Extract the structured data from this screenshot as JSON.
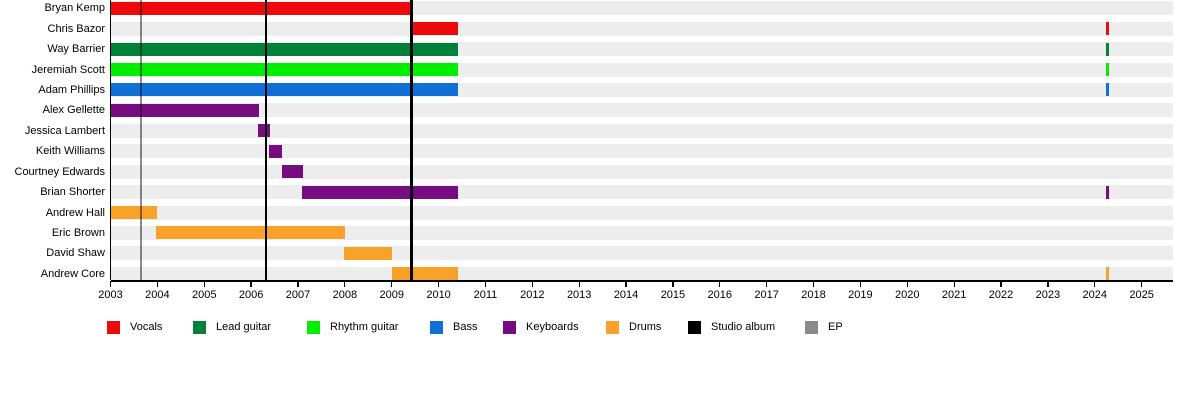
{
  "chart_data": {
    "type": "timeline",
    "description": "Band members timeline gantt chart",
    "x_axis": {
      "min_year": 2003,
      "max_year": 2025.66,
      "tick_labels": [
        "2003",
        "2004",
        "2005",
        "2006",
        "2007",
        "2008",
        "2009",
        "2010",
        "2011",
        "2012",
        "2013",
        "2014",
        "2015",
        "2016",
        "2017",
        "2018",
        "2019",
        "2020",
        "2021",
        "2022",
        "2023",
        "2024",
        "2025"
      ]
    },
    "colors": {
      "vocals": "#ee0a0a",
      "lead_guitar": "#01813a",
      "rhythm_guitar": "#00ee00",
      "bass": "#1170d5",
      "keyboards": "#770b80",
      "drums": "#f9a22a",
      "studio_album": "#000000",
      "ep": "#8a8a8a",
      "stripe": "#ededed"
    },
    "members": [
      {
        "name": "Bryan Kemp",
        "role": "Vocals",
        "color_key": "vocals",
        "bars": [
          [
            2003.02,
            2009.4
          ]
        ]
      },
      {
        "name": "Chris Bazor",
        "role": "Vocals",
        "color_key": "vocals",
        "bars": [
          [
            2009.4,
            2010.42
          ],
          [
            2024.25,
            2024.31
          ]
        ]
      },
      {
        "name": "Way Barrier",
        "role": "Lead guitar",
        "color_key": "lead_guitar",
        "bars": [
          [
            2003.02,
            2010.42
          ],
          [
            2024.25,
            2024.31
          ]
        ]
      },
      {
        "name": "Jeremiah Scott",
        "role": "Rhythm guitar",
        "color_key": "rhythm_guitar",
        "bars": [
          [
            2003.02,
            2010.42
          ],
          [
            2024.25,
            2024.31
          ]
        ]
      },
      {
        "name": "Adam Phillips",
        "role": "Bass",
        "color_key": "bass",
        "bars": [
          [
            2003.02,
            2010.42
          ],
          [
            2024.25,
            2024.31
          ]
        ]
      },
      {
        "name": "Alex Gellette",
        "role": "Keyboards",
        "color_key": "keyboards",
        "bars": [
          [
            2003.02,
            2006.17
          ]
        ]
      },
      {
        "name": "Jessica Lambert",
        "role": "Keyboards",
        "color_key": "keyboards",
        "bars": [
          [
            2006.15,
            2006.4
          ]
        ]
      },
      {
        "name": "Keith Williams",
        "role": "Keyboards",
        "color_key": "keyboards",
        "bars": [
          [
            2006.39,
            2006.67
          ]
        ]
      },
      {
        "name": "Courtney Edwards",
        "role": "Keyboards",
        "color_key": "keyboards",
        "bars": [
          [
            2006.65,
            2007.11
          ]
        ]
      },
      {
        "name": "Brian Shorter",
        "role": "Keyboards",
        "color_key": "keyboards",
        "bars": [
          [
            2007.08,
            2010.42
          ],
          [
            2024.25,
            2024.31
          ]
        ]
      },
      {
        "name": "Andrew Hall",
        "role": "Drums",
        "color_key": "drums",
        "bars": [
          [
            2003.02,
            2004.0
          ]
        ]
      },
      {
        "name": "Eric Brown",
        "role": "Drums",
        "color_key": "drums",
        "bars": [
          [
            2003.98,
            2008.0
          ]
        ]
      },
      {
        "name": "David Shaw",
        "role": "Drums",
        "color_key": "drums",
        "bars": [
          [
            2007.98,
            2009.0
          ]
        ]
      },
      {
        "name": "Andrew Core",
        "role": "Drums",
        "color_key": "drums",
        "bars": [
          [
            2009.0,
            2010.42
          ],
          [
            2024.25,
            2024.31
          ]
        ]
      }
    ],
    "event_lines": [
      {
        "label": "EP",
        "year": 2003.65,
        "color_key": "ep"
      },
      {
        "label": "Studio album",
        "year": 2006.32,
        "color_key": "studio_album"
      },
      {
        "label": "Studio album",
        "year": 2009.42,
        "color_key": "studio_album"
      }
    ],
    "legend": [
      {
        "label": "Vocals",
        "color_key": "vocals"
      },
      {
        "label": "Lead guitar",
        "color_key": "lead_guitar"
      },
      {
        "label": "Rhythm guitar",
        "color_key": "rhythm_guitar"
      },
      {
        "label": "Bass",
        "color_key": "bass"
      },
      {
        "label": "Keyboards",
        "color_key": "keyboards"
      },
      {
        "label": "Drums",
        "color_key": "drums"
      },
      {
        "label": "Studio album",
        "color_key": "studio_album"
      },
      {
        "label": "EP",
        "color_key": "ep"
      }
    ]
  }
}
